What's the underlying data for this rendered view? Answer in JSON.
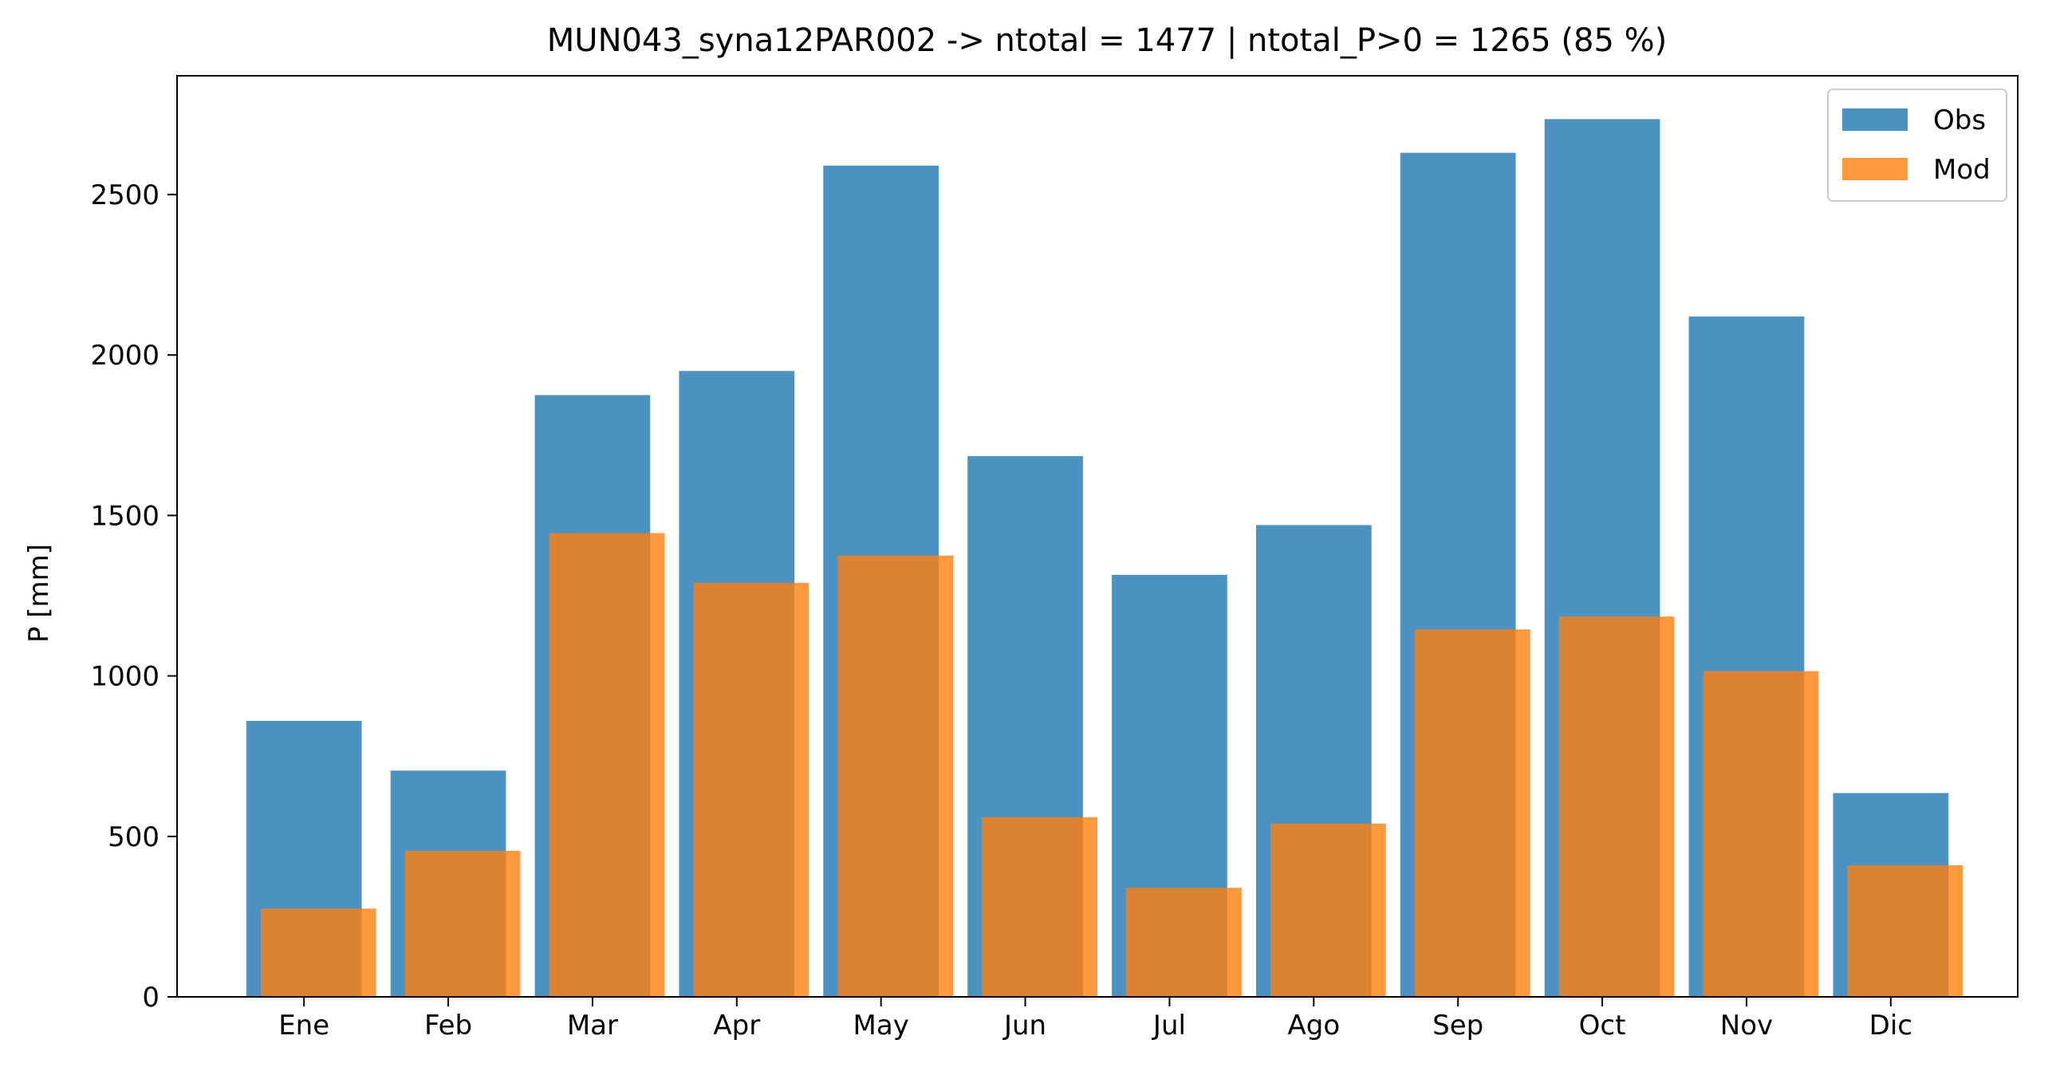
{
  "chart_data": {
    "type": "bar",
    "title": "MUN043_syna12PAR002 -> ntotal = 1477 | ntotal_P>0 = 1265 (85 %)",
    "xlabel": "",
    "ylabel": "P [mm]",
    "categories": [
      "Ene",
      "Feb",
      "Mar",
      "Apr",
      "May",
      "Jun",
      "Jul",
      "Ago",
      "Sep",
      "Oct",
      "Nov",
      "Dic"
    ],
    "series": [
      {
        "name": "Obs",
        "color": "#1f77b4",
        "opacity": 0.8,
        "values": [
          860,
          705,
          1875,
          1950,
          2590,
          1685,
          1315,
          1470,
          2630,
          2735,
          2120,
          635
        ]
      },
      {
        "name": "Mod",
        "color": "#ff7f0e",
        "opacity": 0.8,
        "values": [
          275,
          455,
          1445,
          1290,
          1375,
          560,
          340,
          540,
          1145,
          1185,
          1015,
          410
        ]
      }
    ],
    "ylim": [
      0,
      2870
    ],
    "yticks": [
      0,
      500,
      1000,
      1500,
      2000,
      2500
    ],
    "grid": false,
    "legend_position": "top-right"
  }
}
